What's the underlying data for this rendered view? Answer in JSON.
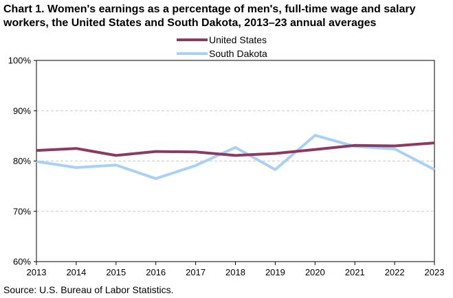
{
  "title": {
    "line1": "Chart 1. Women's earnings as a percentage of men's, full-time wage and salary",
    "line2": "workers, the United States and South Dakota, 2013–23 annual averages"
  },
  "source": "Source:  U.S. Bureau of Labor Statistics.",
  "chart_data": {
    "type": "line",
    "title": "Chart 1. Women's earnings as a percentage of men's, full-time wage and salary workers, the United States and South Dakota, 2013–23 annual averages",
    "xlabel": "",
    "ylabel": "",
    "x": [
      "2013",
      "2014",
      "2015",
      "2016",
      "2017",
      "2018",
      "2019",
      "2020",
      "2021",
      "2022",
      "2023"
    ],
    "ylim": [
      60,
      100
    ],
    "yticks": [
      60,
      70,
      80,
      90,
      100
    ],
    "ytick_labels": [
      "60%",
      "70%",
      "80%",
      "90%",
      "100%"
    ],
    "grid": "horizontal dashed",
    "legend_position": "top-center",
    "series": [
      {
        "name": "United States",
        "color": "#8B3A62",
        "values": [
          82.1,
          82.5,
          81.1,
          81.9,
          81.8,
          81.1,
          81.5,
          82.3,
          83.1,
          83.0,
          83.6
        ]
      },
      {
        "name": "South Dakota",
        "color": "#A9D1F5",
        "values": [
          79.9,
          78.7,
          79.2,
          76.5,
          79.1,
          82.7,
          78.3,
          85.1,
          82.9,
          82.4,
          78.3
        ]
      }
    ]
  }
}
